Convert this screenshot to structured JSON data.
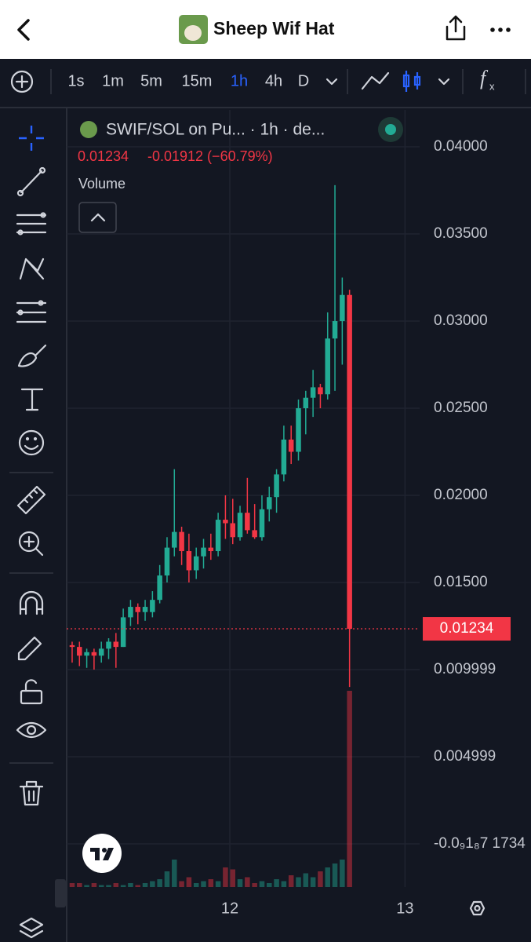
{
  "header": {
    "title": "Sheep Wif Hat"
  },
  "toolbar": {
    "intervals": [
      "1s",
      "1m",
      "5m",
      "15m",
      "1h",
      "4h",
      "D"
    ],
    "active": "1h"
  },
  "legend": {
    "symbol": "SWIF/SOL on Pu... · 1h · de...",
    "last": "0.01234",
    "change": "-0.01912 (−60.79%)",
    "study": "Volume"
  },
  "chart_data": {
    "type": "candlestick",
    "candles": [
      {
        "o": 0.0114,
        "h": 0.0116,
        "l": 0.0104,
        "c": 0.0113
      },
      {
        "o": 0.0113,
        "h": 0.0116,
        "l": 0.0102,
        "c": 0.0108
      },
      {
        "o": 0.0108,
        "h": 0.0112,
        "l": 0.0101,
        "c": 0.011
      },
      {
        "o": 0.011,
        "h": 0.0112,
        "l": 0.01,
        "c": 0.0108
      },
      {
        "o": 0.0108,
        "h": 0.0116,
        "l": 0.0104,
        "c": 0.0112
      },
      {
        "o": 0.0112,
        "h": 0.0118,
        "l": 0.0106,
        "c": 0.0116
      },
      {
        "o": 0.0116,
        "h": 0.0121,
        "l": 0.0101,
        "c": 0.0113
      },
      {
        "o": 0.0113,
        "h": 0.0135,
        "l": 0.0113,
        "c": 0.013
      },
      {
        "o": 0.013,
        "h": 0.014,
        "l": 0.0125,
        "c": 0.0136
      },
      {
        "o": 0.0136,
        "h": 0.0138,
        "l": 0.0126,
        "c": 0.0133
      },
      {
        "o": 0.0133,
        "h": 0.014,
        "l": 0.0128,
        "c": 0.0136
      },
      {
        "o": 0.0133,
        "h": 0.0145,
        "l": 0.013,
        "c": 0.014
      },
      {
        "o": 0.014,
        "h": 0.016,
        "l": 0.0138,
        "c": 0.0154
      },
      {
        "o": 0.0154,
        "h": 0.0176,
        "l": 0.015,
        "c": 0.017
      },
      {
        "o": 0.017,
        "h": 0.0215,
        "l": 0.0165,
        "c": 0.0179
      },
      {
        "o": 0.0179,
        "h": 0.0182,
        "l": 0.016,
        "c": 0.0168
      },
      {
        "o": 0.0168,
        "h": 0.0178,
        "l": 0.015,
        "c": 0.0157
      },
      {
        "o": 0.0157,
        "h": 0.017,
        "l": 0.0152,
        "c": 0.0165
      },
      {
        "o": 0.0165,
        "h": 0.0175,
        "l": 0.0158,
        "c": 0.017
      },
      {
        "o": 0.017,
        "h": 0.0178,
        "l": 0.0163,
        "c": 0.0168
      },
      {
        "o": 0.0168,
        "h": 0.019,
        "l": 0.0165,
        "c": 0.0186
      },
      {
        "o": 0.0186,
        "h": 0.02,
        "l": 0.0175,
        "c": 0.0184
      },
      {
        "o": 0.0184,
        "h": 0.0198,
        "l": 0.0172,
        "c": 0.0176
      },
      {
        "o": 0.0176,
        "h": 0.0194,
        "l": 0.0174,
        "c": 0.019
      },
      {
        "o": 0.019,
        "h": 0.021,
        "l": 0.0178,
        "c": 0.018
      },
      {
        "o": 0.018,
        "h": 0.0195,
        "l": 0.0175,
        "c": 0.0176
      },
      {
        "o": 0.0176,
        "h": 0.02,
        "l": 0.0174,
        "c": 0.0192
      },
      {
        "o": 0.0192,
        "h": 0.0205,
        "l": 0.0185,
        "c": 0.0199
      },
      {
        "o": 0.0199,
        "h": 0.0215,
        "l": 0.019,
        "c": 0.0212
      },
      {
        "o": 0.0212,
        "h": 0.024,
        "l": 0.0208,
        "c": 0.0232
      },
      {
        "o": 0.0232,
        "h": 0.024,
        "l": 0.0218,
        "c": 0.0225
      },
      {
        "o": 0.0225,
        "h": 0.0255,
        "l": 0.022,
        "c": 0.025
      },
      {
        "o": 0.025,
        "h": 0.026,
        "l": 0.0235,
        "c": 0.0256
      },
      {
        "o": 0.0256,
        "h": 0.0272,
        "l": 0.0245,
        "c": 0.0262
      },
      {
        "o": 0.0262,
        "h": 0.0264,
        "l": 0.025,
        "c": 0.0258
      },
      {
        "o": 0.0258,
        "h": 0.0305,
        "l": 0.0255,
        "c": 0.029
      },
      {
        "o": 0.029,
        "h": 0.0378,
        "l": 0.026,
        "c": 0.03
      },
      {
        "o": 0.03,
        "h": 0.0325,
        "l": 0.0275,
        "c": 0.0315
      },
      {
        "o": 0.0315,
        "h": 0.0318,
        "l": 0.009,
        "c": 0.01234
      }
    ],
    "volume": [
      2,
      2,
      1,
      2,
      1,
      1,
      2,
      1,
      2,
      1,
      2,
      3,
      4,
      8,
      14,
      3,
      5,
      2,
      3,
      4,
      3,
      10,
      9,
      4,
      5,
      2,
      3,
      2,
      4,
      3,
      6,
      5,
      7,
      5,
      8,
      10,
      12,
      14,
      100
    ],
    "up_color": "#22ab94",
    "down_color": "#f23645",
    "xlim": [
      -0.75,
      47.6
    ],
    "xticks": [
      {
        "value": 21.6,
        "label": "12"
      },
      {
        "value": 45.6,
        "label": "13"
      }
    ],
    "ylim": [
      -0.00248,
      0.04212
    ],
    "yticks": [
      {
        "value": 0.04,
        "label": "0.04000"
      },
      {
        "value": 0.035,
        "label": "0.03500"
      },
      {
        "value": 0.03,
        "label": "0.03000"
      },
      {
        "value": 0.025,
        "label": "0.02500"
      },
      {
        "value": 0.02,
        "label": "0.02000"
      },
      {
        "value": 0.015,
        "label": "0.01500"
      },
      {
        "value": 0.009999,
        "label": "0.009999"
      },
      {
        "value": 0.004999,
        "label": "0.004999"
      },
      {
        "value": -1.734e-18,
        "label": "-0.0₉1₈7 1734"
      }
    ],
    "last_price": 0.01234,
    "grid": true
  }
}
